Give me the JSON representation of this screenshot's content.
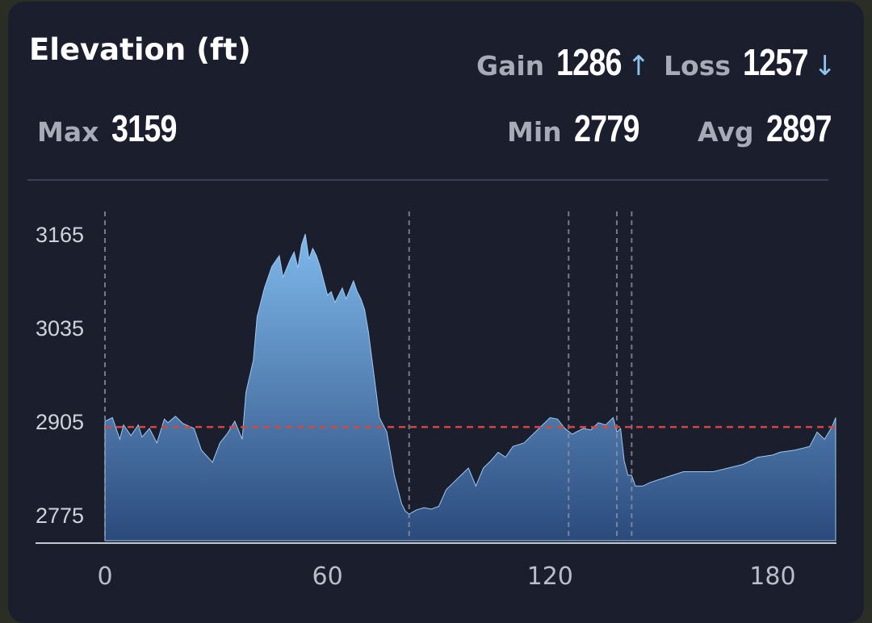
{
  "header": {
    "title": "Elevation (ft)",
    "gain_label": "Gain",
    "gain_value": "1286",
    "gain_arrow": "↑",
    "loss_label": "Loss",
    "loss_value": "1257",
    "loss_arrow": "↓",
    "max_label": "Max",
    "max_value": "3159",
    "min_label": "Min",
    "min_value": "2779",
    "avg_label": "Avg",
    "avg_value": "2897"
  },
  "colors": {
    "card": "#1a1e2d",
    "area_top": "#7fb9ec",
    "area_bottom": "#2b4a7c",
    "avg_line": "#d9443f"
  },
  "chart_data": {
    "type": "area",
    "title": "Elevation (ft)",
    "xlabel": "",
    "ylabel": "",
    "xlim": [
      0,
      197
    ],
    "ylim": [
      2745,
      3195
    ],
    "x_ticks": [
      0,
      60,
      120,
      180
    ],
    "y_ticks": [
      2775,
      2905,
      3035,
      3165
    ],
    "average": 2897,
    "markers_x": [
      0,
      82,
      125,
      138,
      142
    ],
    "x": [
      0,
      2,
      4,
      5,
      7,
      9,
      10,
      12,
      14,
      16,
      17,
      19,
      21,
      24,
      26,
      29,
      31,
      33,
      35,
      37,
      38,
      40,
      41,
      43,
      45,
      47,
      48,
      50,
      51,
      52,
      53,
      54,
      55,
      56,
      57,
      58,
      60,
      61,
      62,
      64,
      65,
      67,
      68,
      69,
      70,
      71,
      72,
      73,
      74,
      76,
      77,
      78,
      79,
      80,
      81,
      82,
      84,
      86,
      88,
      90,
      92,
      94,
      96,
      98,
      100,
      102,
      104,
      106,
      108,
      110,
      113,
      115,
      118,
      120,
      122,
      124,
      126,
      127,
      129,
      131,
      133,
      135,
      137,
      138,
      139,
      140,
      141,
      142,
      143,
      145,
      147,
      150,
      153,
      156,
      160,
      164,
      168,
      172,
      176,
      180,
      182,
      186,
      190,
      192,
      194,
      196,
      197
    ],
    "values": [
      2905,
      2910,
      2880,
      2900,
      2885,
      2900,
      2883,
      2895,
      2875,
      2908,
      2903,
      2912,
      2902,
      2895,
      2865,
      2848,
      2875,
      2888,
      2905,
      2880,
      2945,
      2990,
      3050,
      3090,
      3120,
      3135,
      3105,
      3130,
      3140,
      3118,
      3150,
      3165,
      3130,
      3145,
      3135,
      3120,
      3080,
      3085,
      3070,
      3090,
      3075,
      3100,
      3085,
      3075,
      3060,
      3030,
      2990,
      2950,
      2910,
      2890,
      2860,
      2830,
      2810,
      2790,
      2780,
      2776,
      2782,
      2785,
      2783,
      2787,
      2810,
      2820,
      2830,
      2840,
      2815,
      2840,
      2850,
      2862,
      2855,
      2870,
      2875,
      2885,
      2900,
      2910,
      2908,
      2895,
      2887,
      2890,
      2895,
      2893,
      2903,
      2900,
      2910,
      2890,
      2895,
      2850,
      2830,
      2830,
      2815,
      2815,
      2820,
      2825,
      2830,
      2835,
      2835,
      2835,
      2840,
      2845,
      2855,
      2858,
      2862,
      2865,
      2870,
      2890,
      2880,
      2897,
      2910
    ]
  }
}
